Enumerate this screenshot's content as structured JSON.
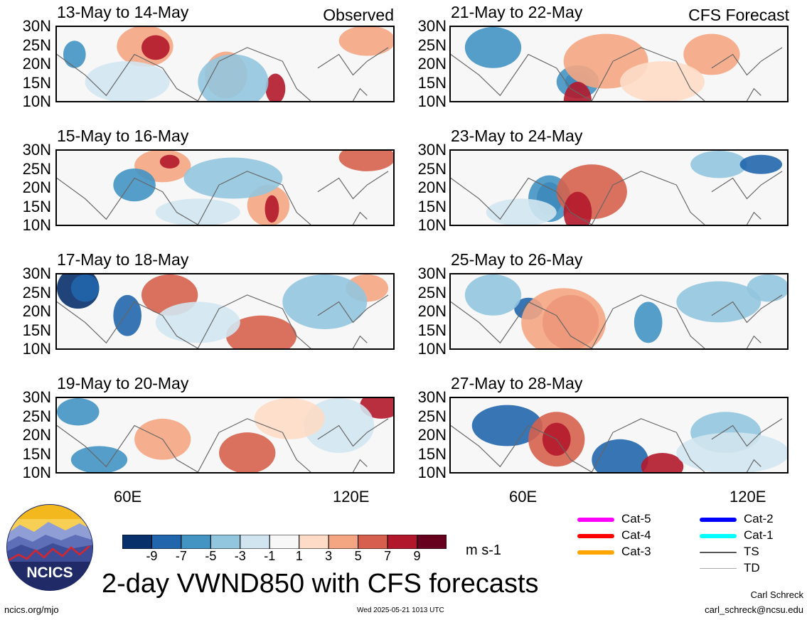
{
  "panels_observed": [
    {
      "title": "13-May to 14-May",
      "tag": "Observed"
    },
    {
      "title": "15-May to 16-May",
      "tag": ""
    },
    {
      "title": "17-May to 18-May",
      "tag": ""
    },
    {
      "title": "19-May to 20-May",
      "tag": ""
    }
  ],
  "panels_forecast": [
    {
      "title": "21-May to 22-May",
      "tag": "CFS Forecast"
    },
    {
      "title": "23-May to 24-May",
      "tag": ""
    },
    {
      "title": "25-May to 26-May",
      "tag": ""
    },
    {
      "title": "27-May to 28-May",
      "tag": ""
    }
  ],
  "lat_labels": [
    "30N",
    "25N",
    "20N",
    "15N",
    "10N"
  ],
  "lon_labels": [
    "60E",
    "120E"
  ],
  "colorbar": {
    "colors": [
      "#08306b",
      "#2166ac",
      "#4393c3",
      "#92c5de",
      "#d1e5f0",
      "#f7f7f7",
      "#fddbc7",
      "#f4a582",
      "#d6604d",
      "#b2182b",
      "#67001f"
    ],
    "labels": [
      "-9",
      "-7",
      "-5",
      "-3",
      "-1",
      "1",
      "3",
      "5",
      "7",
      "9"
    ],
    "units": "m s-1"
  },
  "legend": [
    {
      "label": "Cat-5",
      "color": "#ff00ff",
      "style": "thick"
    },
    {
      "label": "Cat-4",
      "color": "#ff0000",
      "style": "thick"
    },
    {
      "label": "Cat-3",
      "color": "#ffa500",
      "style": "thick"
    },
    {
      "label": "Cat-2",
      "color": "#0000ff",
      "style": "thick"
    },
    {
      "label": "Cat-1",
      "color": "#00ffff",
      "style": "thick"
    },
    {
      "label": "TS",
      "color": "#555555",
      "style": "medium"
    },
    {
      "label": "TD",
      "color": "#aaaaaa",
      "style": "thin"
    }
  ],
  "logo": {
    "text": "NCICS"
  },
  "main_title": "2-day VWND850 with CFS forecasts",
  "footer": {
    "left": "ncics.org/mjo",
    "center": "Wed 2025-05-21 1013 UTC",
    "author": "Carl Schreck",
    "email": "carl_schreck@ncsu.edu"
  },
  "chart_data": {
    "type": "heatmap",
    "variable": "VWND850",
    "units": "m s-1",
    "lat_range": [
      10,
      30
    ],
    "lon_range": [
      40,
      130
    ],
    "lat_ticks": [
      "30N",
      "25N",
      "20N",
      "15N",
      "10N"
    ],
    "lon_ticks": [
      "60E",
      "120E"
    ],
    "contour_levels": [
      -9,
      -7,
      -5,
      -3,
      -1,
      1,
      3,
      5,
      7,
      9
    ],
    "panels": [
      {
        "period": "13-May to 14-May",
        "source": "Observed"
      },
      {
        "period": "15-May to 16-May",
        "source": "Observed"
      },
      {
        "period": "17-May to 18-May",
        "source": "Observed"
      },
      {
        "period": "19-May to 20-May",
        "source": "Observed"
      },
      {
        "period": "21-May to 22-May",
        "source": "CFS Forecast"
      },
      {
        "period": "23-May to 24-May",
        "source": "CFS Forecast"
      },
      {
        "period": "25-May to 26-May",
        "source": "CFS Forecast"
      },
      {
        "period": "27-May to 28-May",
        "source": "CFS Forecast"
      }
    ]
  }
}
